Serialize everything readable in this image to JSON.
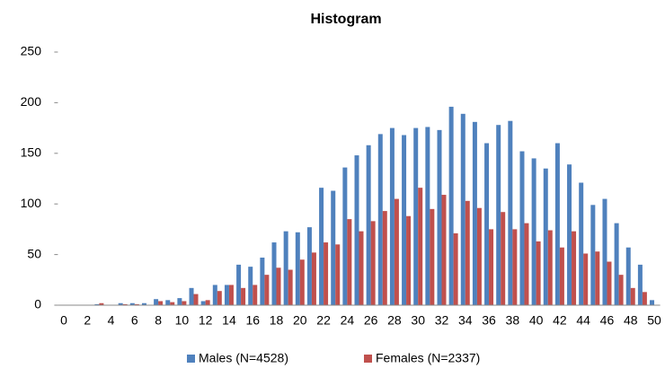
{
  "chart_data": {
    "type": "bar",
    "title": "Histogram",
    "categories": [
      "0",
      null,
      "2",
      null,
      "4",
      null,
      "6",
      null,
      "8",
      null,
      "10",
      null,
      "12",
      null,
      "14",
      null,
      "16",
      null,
      "18",
      null,
      "20",
      null,
      "22",
      null,
      "24",
      null,
      "26",
      null,
      "28",
      null,
      "30",
      null,
      "32",
      null,
      "34",
      null,
      "36",
      null,
      "38",
      null,
      "40",
      null,
      "42",
      null,
      "44",
      null,
      "46",
      null,
      "48",
      null,
      "50"
    ],
    "series": [
      {
        "name": "Males (N=4528)",
        "color": "#4f81bd",
        "values": [
          0,
          0,
          0,
          1,
          0,
          2,
          2,
          2,
          6,
          5,
          7,
          17,
          4,
          20,
          20,
          40,
          38,
          47,
          62,
          73,
          72,
          77,
          116,
          113,
          136,
          148,
          158,
          169,
          175,
          168,
          175,
          176,
          173,
          196,
          189,
          181,
          160,
          178,
          182,
          152,
          145,
          135,
          160,
          139,
          121,
          99,
          105,
          81,
          57,
          40,
          5
        ]
      },
      {
        "name": "Females (N=2337)",
        "color": "#c0504d",
        "values": [
          0,
          0,
          0,
          2,
          0,
          1,
          1,
          0,
          4,
          3,
          4,
          11,
          5,
          14,
          20,
          17,
          20,
          30,
          37,
          35,
          45,
          52,
          62,
          60,
          85,
          73,
          83,
          93,
          105,
          88,
          116,
          95,
          109,
          71,
          103,
          96,
          75,
          92,
          75,
          81,
          63,
          74,
          57,
          73,
          51,
          53,
          43,
          30,
          17,
          13,
          0
        ]
      }
    ],
    "ylim": [
      0,
      250
    ],
    "yticks": [
      0,
      50,
      100,
      150,
      200,
      250
    ],
    "legend": "bottom"
  }
}
